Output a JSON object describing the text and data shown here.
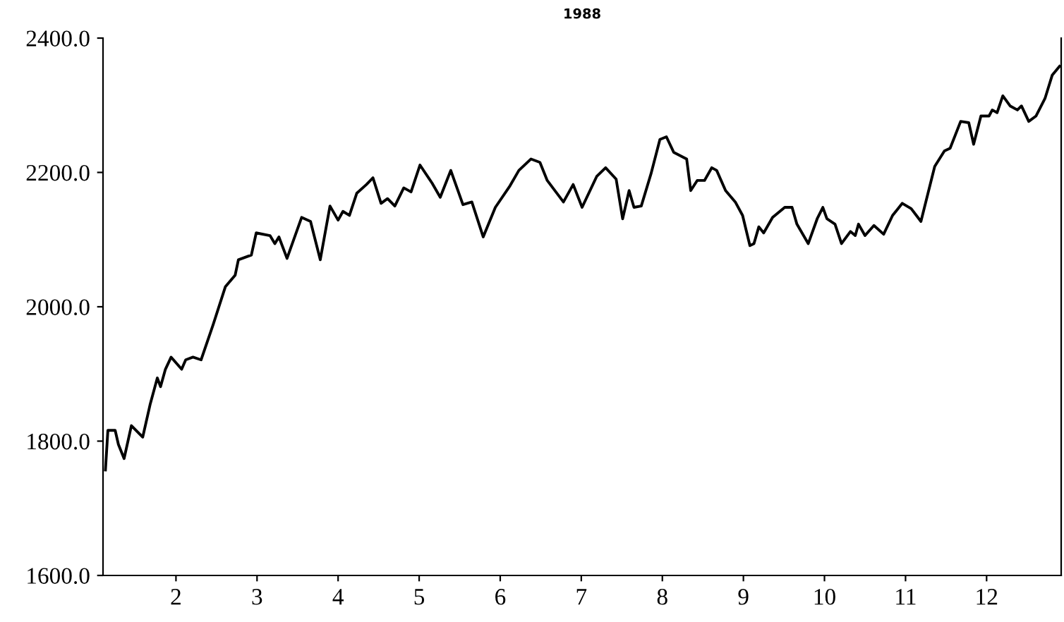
{
  "chart_data": {
    "type": "line",
    "title": "1988",
    "x": [
      1.13,
      1.16,
      1.25,
      1.29,
      1.36,
      1.45,
      1.59,
      1.68,
      1.77,
      1.81,
      1.87,
      1.94,
      2.07,
      2.12,
      2.21,
      2.31,
      2.46,
      2.61,
      2.73,
      2.77,
      2.93,
      2.99,
      3.16,
      3.22,
      3.27,
      3.37,
      3.55,
      3.66,
      3.78,
      3.9,
      4.0,
      4.06,
      4.14,
      4.23,
      4.35,
      4.43,
      4.53,
      4.61,
      4.7,
      4.81,
      4.9,
      5.01,
      5.16,
      5.26,
      5.39,
      5.54,
      5.65,
      5.79,
      5.94,
      6.12,
      6.23,
      6.38,
      6.49,
      6.58,
      6.78,
      6.9,
      7.01,
      7.19,
      7.3,
      7.43,
      7.51,
      7.59,
      7.65,
      7.74,
      7.86,
      7.97,
      8.05,
      8.14,
      8.3,
      8.35,
      8.43,
      8.52,
      8.61,
      8.67,
      8.78,
      8.9,
      8.99,
      9.08,
      9.13,
      9.19,
      9.25,
      9.36,
      9.51,
      9.6,
      9.66,
      9.8,
      9.91,
      9.98,
      10.03,
      10.13,
      10.21,
      10.32,
      10.38,
      10.42,
      10.5,
      10.61,
      10.73,
      10.84,
      10.96,
      11.07,
      11.19,
      11.36,
      11.48,
      11.55,
      11.68,
      11.78,
      11.84,
      11.93,
      12.03,
      12.07,
      12.13,
      12.2,
      12.29,
      12.38,
      12.43,
      12.52,
      12.61,
      12.72,
      12.81,
      12.9
    ],
    "series": [
      {
        "color": "#000000",
        "values": [
          1757,
          1816,
          1816,
          1795,
          1774,
          1823,
          1806,
          1854,
          1894,
          1881,
          1907,
          1925,
          1907,
          1921,
          1925,
          1921,
          1974,
          2030,
          2047,
          2070,
          2077,
          2110,
          2106,
          2094,
          2104,
          2072,
          2133,
          2127,
          2070,
          2150,
          2129,
          2142,
          2136,
          2169,
          2182,
          2192,
          2154,
          2161,
          2150,
          2177,
          2171,
          2211,
          2184,
          2163,
          2203,
          2152,
          2156,
          2104,
          2148,
          2180,
          2203,
          2220,
          2215,
          2188,
          2156,
          2182,
          2148,
          2194,
          2207,
          2190,
          2131,
          2173,
          2148,
          2150,
          2198,
          2249,
          2253,
          2230,
          2220,
          2173,
          2188,
          2188,
          2207,
          2203,
          2173,
          2156,
          2136,
          2091,
          2094,
          2119,
          2110,
          2133,
          2148,
          2148,
          2123,
          2094,
          2131,
          2148,
          2131,
          2123,
          2094,
          2112,
          2106,
          2123,
          2106,
          2121,
          2108,
          2136,
          2154,
          2146,
          2127,
          2209,
          2232,
          2236,
          2276,
          2274,
          2242,
          2284,
          2284,
          2293,
          2289,
          2314,
          2299,
          2293,
          2299,
          2276,
          2284,
          2310,
          2345,
          2358
        ]
      }
    ],
    "xlim": [
      1.1,
      12.92
    ],
    "xticks": [
      2,
      3,
      4,
      5,
      6,
      7,
      8,
      9,
      10,
      11,
      12
    ],
    "ylim": [
      1600,
      2400
    ],
    "yticks": [
      {
        "value": 1600,
        "label": "1600.0"
      },
      {
        "value": 1800,
        "label": "1800.0"
      },
      {
        "value": 2000,
        "label": "2000.0"
      },
      {
        "value": 2200,
        "label": "2200.0"
      },
      {
        "value": 2400,
        "label": "2400.0"
      }
    ],
    "grid": false,
    "legend": false,
    "marker": "none",
    "line_style": "solid"
  }
}
